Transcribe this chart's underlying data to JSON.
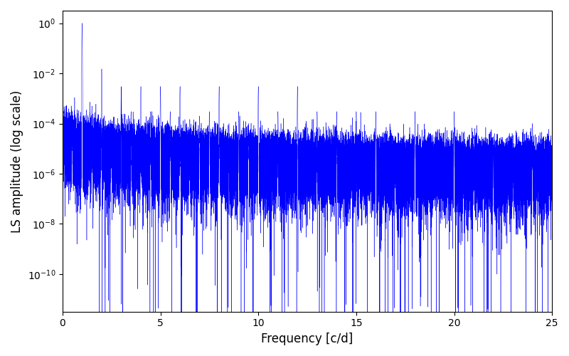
{
  "xlabel": "Frequency [c/d]",
  "ylabel": "LS amplitude (log scale)",
  "title": "",
  "line_color": "#0000ff",
  "xlim": [
    0,
    25
  ],
  "ylim_log": [
    -11.5,
    0.5
  ],
  "xfreq_max": 25.0,
  "n_points": 50000,
  "background_color": "#ffffff",
  "figsize": [
    8.0,
    5.0
  ],
  "dpi": 100,
  "seed": 1234,
  "main_peak_freq": 1.0,
  "main_peak_amp": 1.0,
  "xticks": [
    0,
    5,
    10,
    15,
    20,
    25
  ]
}
